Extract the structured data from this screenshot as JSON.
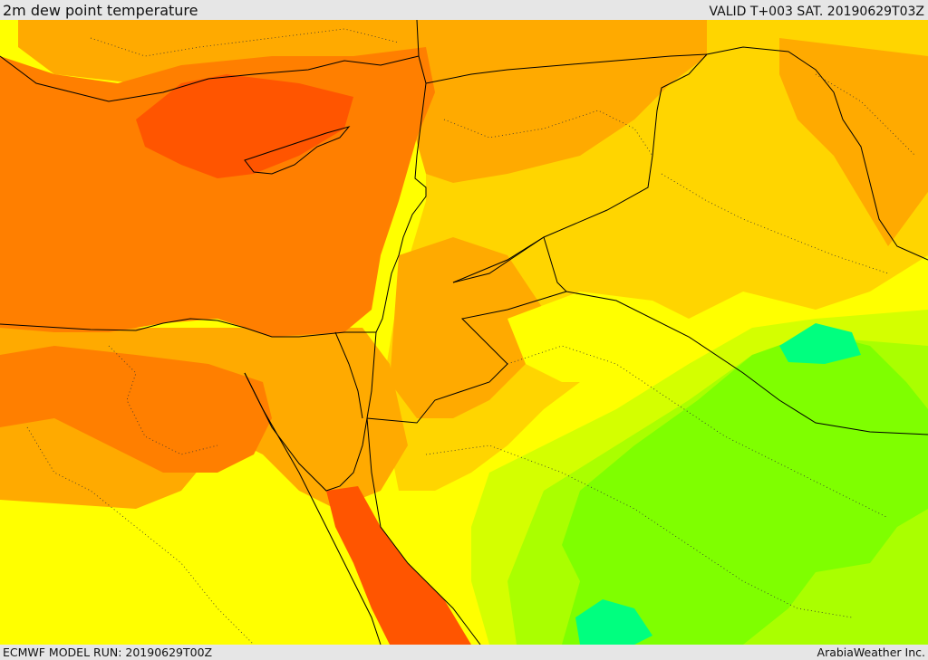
{
  "header": {
    "title": "2m dew point temperature",
    "valid": "VALID T+003 SAT. 20190629T03Z"
  },
  "footer": {
    "model_run": "ECMWF MODEL RUN: 20190629T00Z",
    "credit": "ArabiaWeather Inc."
  },
  "map": {
    "region": "Eastern Mediterranean and Middle East",
    "colors": {
      "deep_orange": "#ff5500",
      "orange": "#ff7f00",
      "light_orange": "#ffaa00",
      "amber": "#ffd500",
      "yellow": "#ffff00",
      "yellow_green": "#d4ff00",
      "light_green": "#aaff00",
      "green": "#7fff00",
      "spring_green": "#00ff7f",
      "border": "#000000"
    }
  }
}
